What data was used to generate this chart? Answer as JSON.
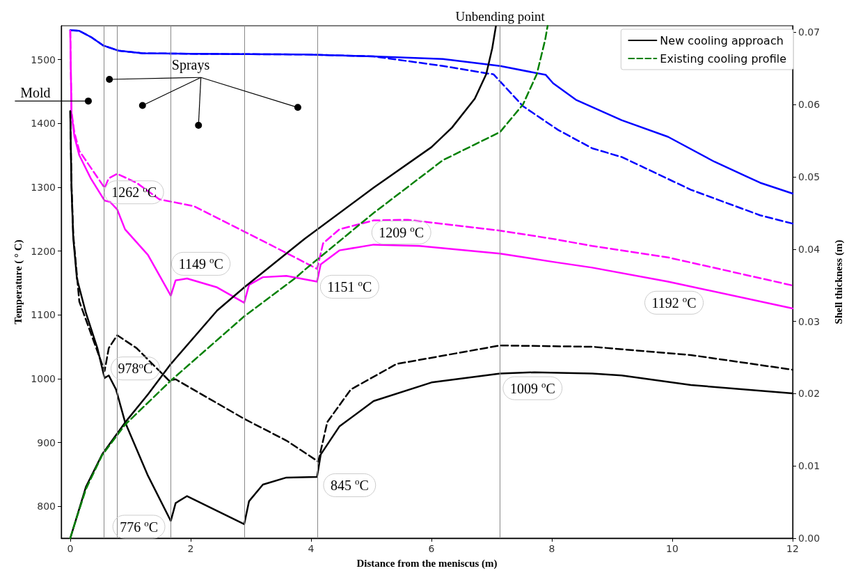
{
  "chart_data": {
    "type": "line",
    "xlabel": "Distance from the meniscus (m)",
    "ylabel": "Temperature ( ° C)",
    "y2label": "Shell thickness (m)",
    "xlim": [
      -0.15,
      12
    ],
    "xticks": [
      0,
      2,
      4,
      6,
      8,
      10,
      12
    ],
    "ylim": [
      750,
      1553
    ],
    "yticks": [
      800,
      900,
      1000,
      1100,
      1200,
      1300,
      1400,
      1500
    ],
    "y2lim": [
      0,
      0.0709
    ],
    "y2ticks": [
      {
        "value": 0,
        "label": "0.00"
      },
      0.01,
      0.02,
      0.03,
      0.04,
      0.05,
      0.06,
      0.07
    ],
    "grid": false,
    "legend": "top right",
    "marker": "none",
    "series": [
      {
        "color": "#0000ff",
        "line_style": "solid",
        "x": [
          0,
          0.15,
          0.35,
          0.55,
          0.8,
          1.2,
          2,
          3.89,
          5.04,
          6.19,
          7.14,
          7.9,
          8.02,
          8.4,
          9.16,
          9.93,
          10.7,
          11.46,
          12
        ],
        "values": [
          1546,
          1545,
          1535,
          1522,
          1514,
          1510,
          1509,
          1508,
          1505,
          1501,
          1490,
          1476,
          1463,
          1437,
          1405,
          1379,
          1340,
          1307,
          1290
        ]
      },
      {
        "color": "#0000ff",
        "line_style": "dashed",
        "x": [
          0,
          0.15,
          0.35,
          0.55,
          0.8,
          1.2,
          2,
          3.89,
          5.04,
          6.19,
          6.95,
          7.03,
          7.52,
          8.1,
          8.67,
          9.17,
          10.31,
          11.46,
          12
        ],
        "values": [
          1546,
          1545,
          1535,
          1522,
          1514,
          1510,
          1509,
          1508,
          1505,
          1490,
          1478,
          1477,
          1427,
          1390,
          1361,
          1347,
          1296,
          1256,
          1243
        ]
      },
      {
        "color": "#ff00ff",
        "line_style": "solid",
        "x": [
          0,
          0.01,
          0.02,
          0.07,
          0.15,
          0.34,
          0.57,
          0.66,
          0.78,
          0.91,
          1.29,
          1.67,
          1.75,
          1.94,
          2.44,
          2.89,
          2.97,
          3.2,
          3.59,
          4.1,
          4.16,
          4.47,
          5.04,
          5.8,
          7.14,
          8.02,
          8.67,
          9.93,
          12
        ],
        "values": [
          1545,
          1480,
          1416,
          1379,
          1350,
          1314,
          1279,
          1277,
          1265,
          1234,
          1194,
          1130,
          1154,
          1157,
          1143,
          1119,
          1147,
          1159,
          1161,
          1152,
          1179,
          1201,
          1210,
          1208,
          1196,
          1183,
          1174,
          1152,
          1110
        ]
      },
      {
        "color": "#ff00ff",
        "line_style": "dashed",
        "x": [
          0,
          0.01,
          0.02,
          0.07,
          0.15,
          0.57,
          0.64,
          0.78,
          1.1,
          1.48,
          1.75,
          2.06,
          2.9,
          3.59,
          4.1,
          4.2,
          4.47,
          5.04,
          5.61,
          7.14,
          8.02,
          8.67,
          9.93,
          12
        ],
        "values": [
          1545,
          1480,
          1418,
          1385,
          1357,
          1299,
          1314,
          1321,
          1307,
          1281,
          1276,
          1270,
          1230,
          1197,
          1172,
          1212,
          1234,
          1248,
          1249,
          1232,
          1219,
          1208,
          1190,
          1146
        ]
      },
      {
        "color": "#000000",
        "line_style": "solid",
        "x": [
          0,
          0.02,
          0.05,
          0.11,
          0.26,
          0.45,
          0.57,
          0.64,
          0.76,
          0.91,
          1.29,
          1.67,
          1.75,
          1.94,
          2.89,
          2.97,
          3.2,
          3.59,
          4.1,
          4.16,
          4.47,
          5.04,
          6,
          7.14,
          7.71,
          8.67,
          9.16,
          10.31,
          12
        ],
        "values": [
          1419,
          1300,
          1220,
          1157,
          1103,
          1048,
          1001,
          1005,
          983,
          932,
          848,
          777,
          805,
          816,
          772,
          808,
          834,
          845,
          846,
          881,
          925,
          965,
          994,
          1008,
          1010,
          1008,
          1005,
          990,
          977
        ]
      },
      {
        "color": "#000000",
        "line_style": "dashed",
        "x": [
          0,
          0.02,
          0.05,
          0.15,
          0.57,
          0.64,
          0.78,
          1.1,
          1.64,
          1.75,
          2.89,
          3.59,
          4.12,
          4.27,
          4.66,
          5.42,
          7.14,
          8.67,
          10.31,
          12
        ],
        "values": [
          1419,
          1305,
          1225,
          1121,
          1012,
          1048,
          1068,
          1048,
          997,
          999,
          937,
          903,
          870,
          932,
          983,
          1023,
          1052,
          1050,
          1037,
          1014
        ]
      },
      {
        "name": "New cooling approach",
        "axis": "y2",
        "color": "#000000",
        "line_style": "solid",
        "x": [
          0,
          0.07,
          0.26,
          0.53,
          0.91,
          1.29,
          1.67,
          2.44,
          2.89,
          3.89,
          5.04,
          6,
          6.34,
          6.72,
          6.91,
          7.01,
          7.07
        ],
        "values": [
          0,
          0.0019,
          0.0071,
          0.0116,
          0.016,
          0.0199,
          0.0241,
          0.0315,
          0.0347,
          0.0414,
          0.0485,
          0.0541,
          0.0568,
          0.0608,
          0.0642,
          0.0678,
          0.0708
        ]
      },
      {
        "name": "Existing cooling profile",
        "axis": "y2",
        "color": "#008000",
        "line_style": "dashed",
        "x": [
          0,
          0.07,
          0.26,
          0.53,
          0.91,
          1.67,
          2.89,
          3.74,
          3.89,
          5.04,
          6.19,
          7.14,
          7.52,
          7.75,
          7.89,
          7.93
        ],
        "values": [
          0,
          0.0019,
          0.0068,
          0.0115,
          0.0157,
          0.0218,
          0.0307,
          0.036,
          0.0371,
          0.045,
          0.0523,
          0.0562,
          0.06,
          0.0642,
          0.069,
          0.0709
        ]
      }
    ],
    "ref_lines": [
      {
        "axis": "x",
        "value": 0.56,
        "label": null,
        "color": "#888888"
      },
      {
        "axis": "x",
        "value": 0.78,
        "label": null,
        "color": "#888888"
      },
      {
        "axis": "x",
        "value": 1.67,
        "label": null,
        "color": "#888888"
      },
      {
        "axis": "x",
        "value": 2.89,
        "label": null,
        "color": "#888888"
      },
      {
        "axis": "x",
        "value": 4.11,
        "label": null,
        "color": "#888888"
      },
      {
        "axis": "x",
        "value": 7.14,
        "label": "Unbending point",
        "color": "#888888"
      }
    ],
    "annotations": [
      "Mold",
      "Sprays",
      "1262 $^{o}$C",
      "1149 $^{o}$C",
      "1151 $^{o}$C",
      "1209 $^{o}$C",
      "1192 $^{o}$C",
      "978$^{o}$C",
      "776 $^{o}$C",
      "845 $^{o}$C",
      "1009 $^{o}$C"
    ]
  }
}
